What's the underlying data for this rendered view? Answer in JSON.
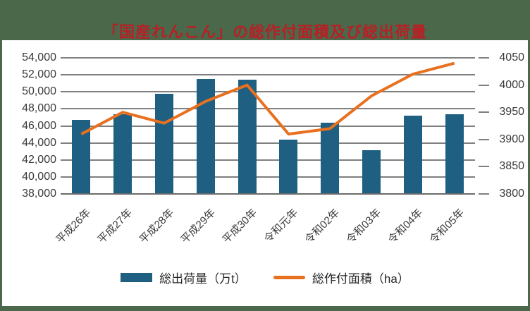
{
  "title": {
    "text": "「国産れんこん」の総作付面積及び総出荷量"
  },
  "colors": {
    "title_red": "#B72025",
    "band_green": "#4B684B",
    "bar_teal": "#1F5F82",
    "line_orange": "#E8711F",
    "grid_gray": "#7f7f7f",
    "axis_text": "#3a3a3a"
  },
  "legend": {
    "items": [
      {
        "label": "総出荷量（万t）",
        "swatch": "bar"
      },
      {
        "label": "総作付面積（ha）",
        "swatch": "line"
      }
    ]
  },
  "chart_data": {
    "type": "bar",
    "subtype": "bar+line combo, dual axis",
    "title": "「国産れんこん」の総作付面積及び総出荷量",
    "categories": [
      "平成26年",
      "平成27年",
      "平成28年",
      "平成29年",
      "平成30年",
      "令和元年",
      "令和02年",
      "令和03年",
      "令和04年",
      "令和05年"
    ],
    "series": [
      {
        "name": "総出荷量（万t）",
        "type": "bar",
        "axis": "left",
        "values": [
          46700,
          47400,
          49800,
          51500,
          51400,
          44400,
          46400,
          43100,
          47200,
          47400
        ]
      },
      {
        "name": "総作付面積（ha）",
        "type": "line",
        "axis": "right",
        "values": [
          3910,
          3950,
          3930,
          3970,
          4000,
          3910,
          3920,
          3980,
          4020,
          4040
        ]
      }
    ],
    "left_axis": {
      "min": 38000,
      "max": 54000,
      "step": 2000,
      "labels": [
        "54,000",
        "52,000",
        "50,000",
        "48,000",
        "46,000",
        "44,000",
        "42,000",
        "40,000",
        "38,000"
      ]
    },
    "right_axis": {
      "min": 3800,
      "max": 4050,
      "step": 50,
      "labels": [
        "4050",
        "4000",
        "3950",
        "3900",
        "3850",
        "3800"
      ]
    },
    "grid": true,
    "legend_position": "bottom",
    "x_label_rotation": 45
  }
}
